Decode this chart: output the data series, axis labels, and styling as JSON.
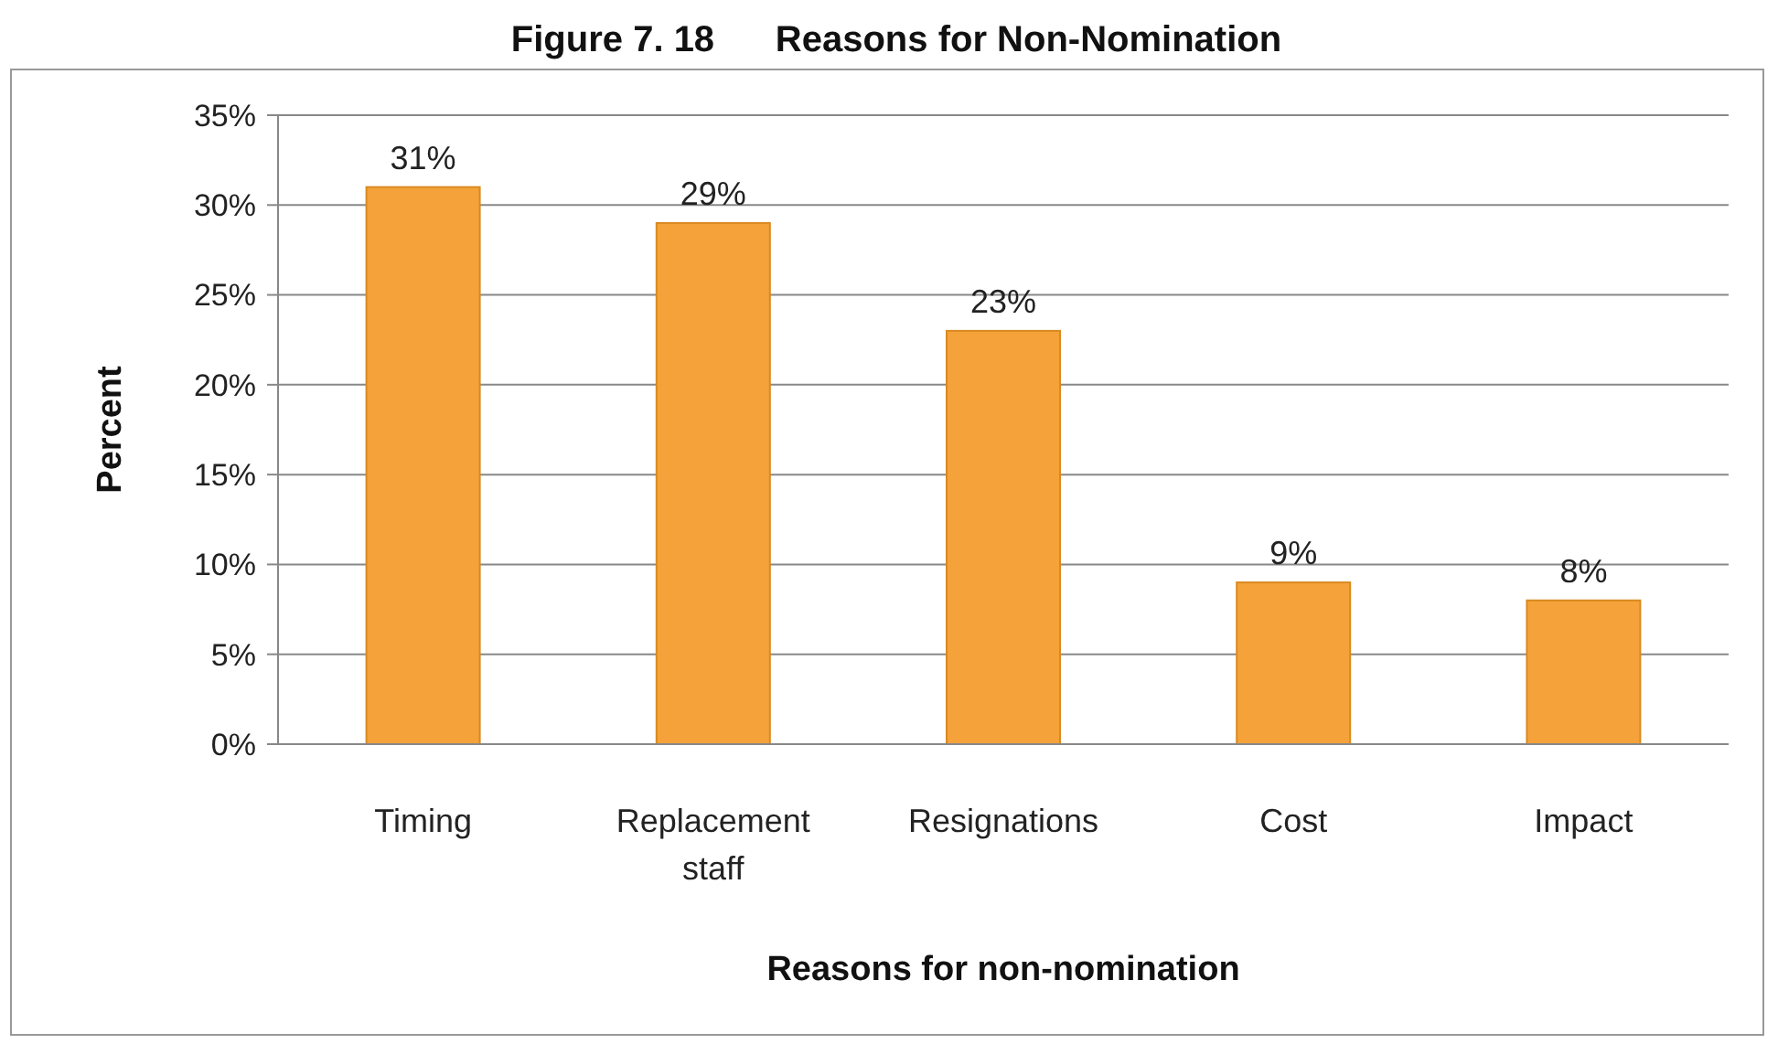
{
  "chart_data": {
    "type": "bar",
    "title": "Figure 7. 18      Reasons for Non-Nomination",
    "xlabel": "Reasons for non-nomination",
    "ylabel": "Percent",
    "categories": [
      "Timing",
      "Replacement staff",
      "Resignations",
      "Cost",
      "Impact"
    ],
    "values": [
      31,
      29,
      23,
      9,
      8
    ],
    "value_labels": [
      "31%",
      "29%",
      "23%",
      "9%",
      "8%"
    ],
    "color": "#f5a23a",
    "ylim": [
      0,
      35
    ],
    "yticks": [
      {
        "value": 0,
        "label": "0%"
      },
      {
        "value": 5,
        "label": "5%"
      },
      {
        "value": 10,
        "label": "10%"
      },
      {
        "value": 15,
        "label": "15%"
      },
      {
        "value": 20,
        "label": "20%"
      },
      {
        "value": 25,
        "label": "25%"
      },
      {
        "value": 30,
        "label": "30%"
      },
      {
        "value": 35,
        "label": "35%"
      }
    ],
    "grid": "y"
  }
}
